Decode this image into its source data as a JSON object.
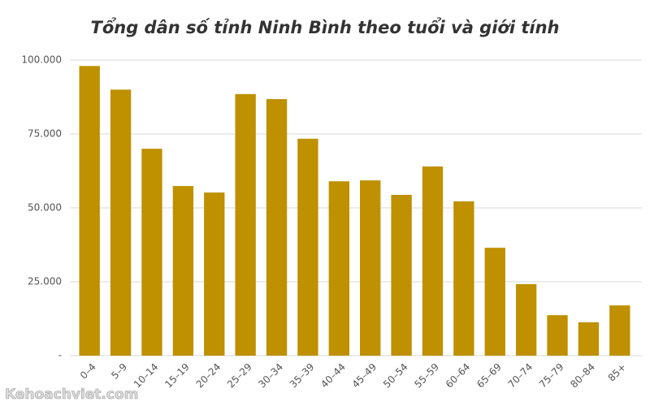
{
  "chart_data": {
    "type": "bar",
    "title": "Tổng dân số tỉnh Ninh Bình theo tuổi và giới tính",
    "categories": [
      "0–4",
      "5–9",
      "10–14",
      "15–19",
      "20–24",
      "25–29",
      "30–34",
      "35–39",
      "40–44",
      "45–49",
      "50–54",
      "55–59",
      "60–64",
      "65–69",
      "70–74",
      "75–79",
      "80–84",
      "85+"
    ],
    "values": [
      98000,
      90000,
      70000,
      57400,
      55200,
      88500,
      86800,
      73400,
      59000,
      59300,
      54400,
      64000,
      52200,
      36500,
      24200,
      13700,
      11300,
      17000
    ],
    "color": "#bf9000",
    "ylim": [
      0,
      100000
    ],
    "yticks": [
      {
        "value": 0,
        "label": "-"
      },
      {
        "value": 25000,
        "label": "25.000"
      },
      {
        "value": 50000,
        "label": "50.000"
      },
      {
        "value": 75000,
        "label": "75.000"
      },
      {
        "value": 100000,
        "label": "100.000"
      }
    ],
    "grid": true
  },
  "watermark": "Kehoachviet.com"
}
